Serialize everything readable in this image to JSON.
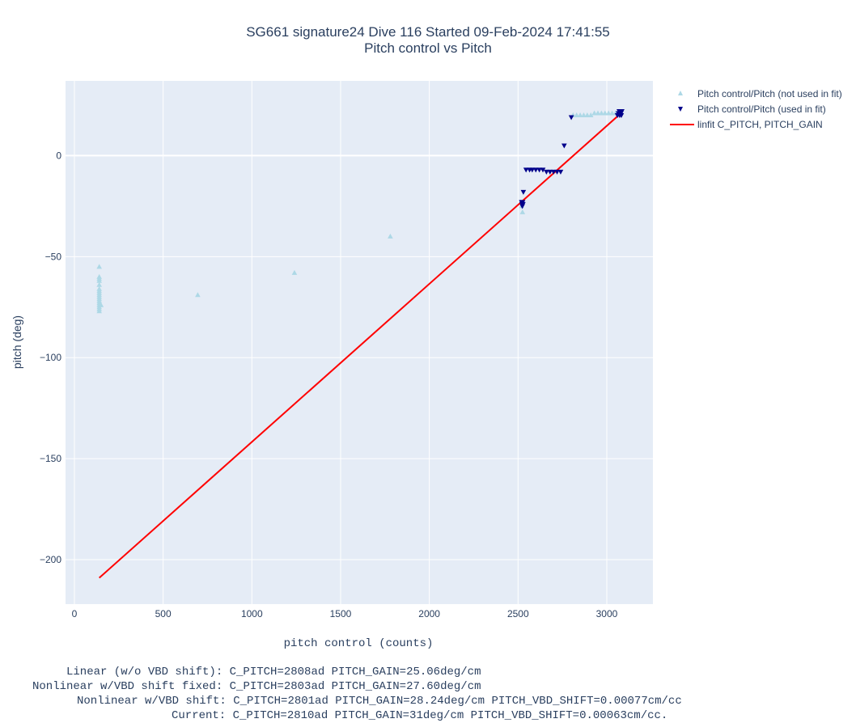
{
  "chart_data": {
    "type": "scatter",
    "title": "SG661 signature24 Dive 116 Started 09-Feb-2024 17:41:55",
    "subtitle": "Pitch control vs Pitch",
    "xlabel": "pitch control (counts)",
    "ylabel": "pitch (deg)",
    "xlim": [
      -50,
      3260
    ],
    "ylim": [
      -222,
      37
    ],
    "x_ticks": [
      0,
      500,
      1000,
      1500,
      2000,
      2500,
      3000
    ],
    "x_tick_labels": [
      "0",
      "500",
      "1000",
      "1500",
      "2000",
      "2500",
      "3000"
    ],
    "y_ticks": [
      0,
      -50,
      -100,
      -150,
      -200
    ],
    "y_tick_labels": [
      "0",
      "−50",
      "−100",
      "−150",
      "−200"
    ],
    "grid": true,
    "legend_position": "top-right outside",
    "series": [
      {
        "name": "Pitch control/Pitch (not used in fit)",
        "marker": "triangle-up",
        "color": "#add8e6",
        "points": [
          [
            140,
            -55
          ],
          [
            140,
            -60
          ],
          [
            140,
            -61
          ],
          [
            140,
            -62
          ],
          [
            140,
            -64
          ],
          [
            140,
            -66
          ],
          [
            140,
            -67
          ],
          [
            140,
            -68
          ],
          [
            140,
            -69
          ],
          [
            140,
            -70
          ],
          [
            140,
            -71
          ],
          [
            140,
            -72
          ],
          [
            140,
            -73
          ],
          [
            140,
            -74
          ],
          [
            140,
            -75
          ],
          [
            140,
            -76
          ],
          [
            140,
            -77
          ],
          [
            150,
            -74
          ],
          [
            695,
            -69
          ],
          [
            1240,
            -58
          ],
          [
            1780,
            -40
          ],
          [
            2525,
            -28
          ],
          [
            2520,
            -25
          ],
          [
            2810,
            20
          ],
          [
            2830,
            20
          ],
          [
            2850,
            20
          ],
          [
            2870,
            20
          ],
          [
            2890,
            20
          ],
          [
            2910,
            20
          ],
          [
            2930,
            21
          ],
          [
            2950,
            21
          ],
          [
            2970,
            21
          ],
          [
            2990,
            21
          ],
          [
            3010,
            21
          ],
          [
            3030,
            21
          ],
          [
            3050,
            21
          ],
          [
            3060,
            21
          ]
        ]
      },
      {
        "name": "Pitch control/Pitch (used in fit)",
        "marker": "triangle-down",
        "color": "#00008b",
        "points": [
          [
            2520,
            -23
          ],
          [
            2522,
            -24
          ],
          [
            2524,
            -25
          ],
          [
            2526,
            -23
          ],
          [
            2528,
            -24
          ],
          [
            2530,
            -18
          ],
          [
            2545,
            -7
          ],
          [
            2565,
            -7
          ],
          [
            2580,
            -7
          ],
          [
            2600,
            -7
          ],
          [
            2620,
            -7
          ],
          [
            2640,
            -7
          ],
          [
            2660,
            -8
          ],
          [
            2680,
            -8
          ],
          [
            2700,
            -8
          ],
          [
            2720,
            -8
          ],
          [
            2740,
            -8
          ],
          [
            2760,
            5
          ],
          [
            2800,
            19
          ],
          [
            3060,
            20
          ],
          [
            3065,
            21
          ],
          [
            3070,
            22
          ],
          [
            3072,
            20
          ],
          [
            3075,
            21
          ],
          [
            3078,
            22
          ],
          [
            3080,
            21
          ],
          [
            3082,
            20
          ],
          [
            3085,
            22
          ]
        ]
      },
      {
        "name": "linfit C_PITCH, PITCH_GAIN",
        "type": "line",
        "color": "#ff0000",
        "points": [
          [
            140,
            -209
          ],
          [
            3080,
            21
          ]
        ]
      }
    ]
  },
  "fit_results": [
    "Linear (w/o VBD shift): C_PITCH=2808ad PITCH_GAIN=25.06deg/cm",
    "Nonlinear w/VBD shift fixed: C_PITCH=2803ad PITCH_GAIN=27.60deg/cm",
    "Nonlinear w/VBD shift: C_PITCH=2801ad PITCH_GAIN=28.24deg/cm PITCH_VBD_SHIFT=0.00077cm/cc",
    "Current: C_PITCH=2810ad PITCH_GAIN=31deg/cm PITCH_VBD_SHIFT=0.00063cm/cc."
  ],
  "colors": {
    "plot_bg": "#e5ecf6",
    "grid": "#ffffff",
    "text": "#2a3f5f"
  }
}
